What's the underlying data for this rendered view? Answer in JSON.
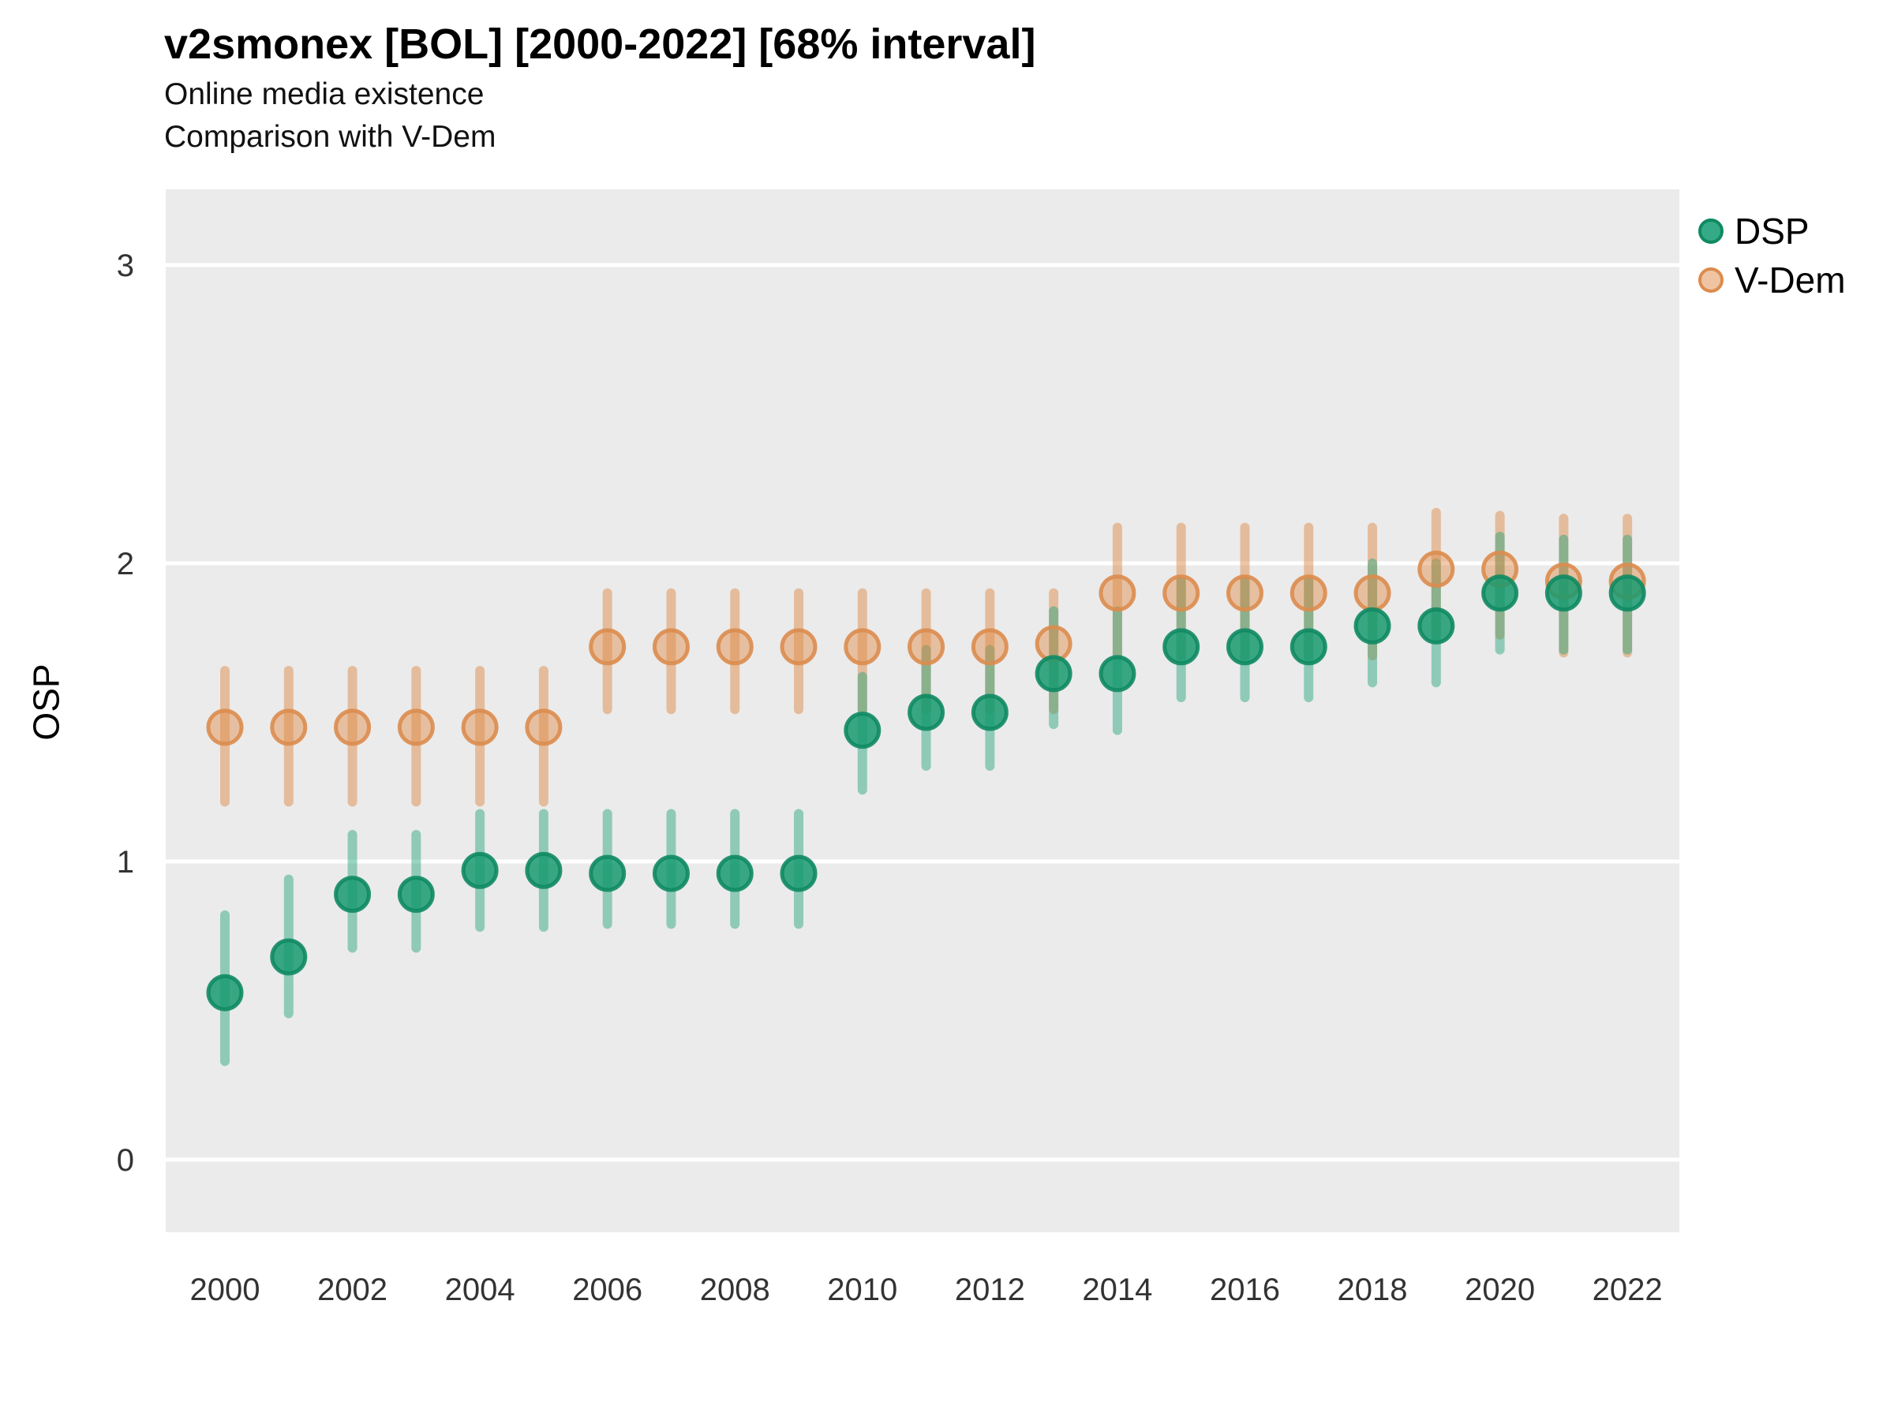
{
  "header": {
    "title": "v2smonex [BOL] [2000-2022] [68% interval]",
    "subtitle1": "Online media existence",
    "subtitle2": "Comparison with V-Dem"
  },
  "axes": {
    "y_label": "OSP",
    "y_ticks": [
      {
        "label": "0",
        "value": 0
      },
      {
        "label": "1",
        "value": 1
      },
      {
        "label": "2",
        "value": 2
      },
      {
        "label": "3",
        "value": 3
      }
    ],
    "x_ticks": [
      {
        "label": "2000",
        "year": 2000
      },
      {
        "label": "2002",
        "year": 2002
      },
      {
        "label": "2004",
        "year": 2004
      },
      {
        "label": "2006",
        "year": 2006
      },
      {
        "label": "2008",
        "year": 2008
      },
      {
        "label": "2010",
        "year": 2010
      },
      {
        "label": "2012",
        "year": 2012
      },
      {
        "label": "2014",
        "year": 2014
      },
      {
        "label": "2016",
        "year": 2016
      },
      {
        "label": "2018",
        "year": 2018
      },
      {
        "label": "2020",
        "year": 2020
      },
      {
        "label": "2022",
        "year": 2022
      }
    ]
  },
  "legend": {
    "items": [
      {
        "label": "DSP",
        "dot_fill": "#1FA179",
        "dot_fill_opacity": 0.9,
        "dot_stroke": "#0F8A63"
      },
      {
        "label": "V-Dem",
        "dot_fill": "#E08A45",
        "dot_fill_opacity": 0.5,
        "dot_stroke": "#DC8C4E"
      }
    ]
  },
  "colors": {
    "panel_background": "#EBEBEB",
    "gridline": "#FFFFFF",
    "dsp_point_fill": "#179A6F",
    "dsp_point_stroke": "#0F8A63",
    "dsp_bar": "#1FA179",
    "vdem_point_fill": "#E08A45",
    "vdem_point_stroke": "#DC8C4E",
    "vdem_bar": "#DD8D4E",
    "tick_text": "#333333"
  },
  "chart_data": {
    "type": "scatter",
    "title": "v2smonex [BOL] [2000-2022] [68% interval]",
    "subtitle": "Online media existence / Comparison with V-Dem",
    "xlabel": "",
    "ylabel": "OSP",
    "x_range_years": [
      2000,
      2022
    ],
    "ylim": [
      -0.25,
      3.25
    ],
    "y_gridlines": [
      0,
      1,
      2,
      3
    ],
    "grid": "major-horizontal-only",
    "legend_position": "right-top",
    "interval_note": "68% credible interval shown as vertical bars",
    "series": [
      {
        "name": "V-Dem",
        "points": [
          {
            "year": 2000,
            "value": 1.45,
            "lo": 1.2,
            "hi": 1.64
          },
          {
            "year": 2001,
            "value": 1.45,
            "lo": 1.2,
            "hi": 1.64
          },
          {
            "year": 2002,
            "value": 1.45,
            "lo": 1.2,
            "hi": 1.64
          },
          {
            "year": 2003,
            "value": 1.45,
            "lo": 1.2,
            "hi": 1.64
          },
          {
            "year": 2004,
            "value": 1.45,
            "lo": 1.2,
            "hi": 1.64
          },
          {
            "year": 2005,
            "value": 1.45,
            "lo": 1.2,
            "hi": 1.64
          },
          {
            "year": 2006,
            "value": 1.72,
            "lo": 1.51,
            "hi": 1.9
          },
          {
            "year": 2007,
            "value": 1.72,
            "lo": 1.51,
            "hi": 1.9
          },
          {
            "year": 2008,
            "value": 1.72,
            "lo": 1.51,
            "hi": 1.9
          },
          {
            "year": 2009,
            "value": 1.72,
            "lo": 1.51,
            "hi": 1.9
          },
          {
            "year": 2010,
            "value": 1.72,
            "lo": 1.51,
            "hi": 1.9
          },
          {
            "year": 2011,
            "value": 1.72,
            "lo": 1.51,
            "hi": 1.9
          },
          {
            "year": 2012,
            "value": 1.72,
            "lo": 1.51,
            "hi": 1.9
          },
          {
            "year": 2013,
            "value": 1.73,
            "lo": 1.51,
            "hi": 1.9
          },
          {
            "year": 2014,
            "value": 1.9,
            "lo": 1.69,
            "hi": 2.12
          },
          {
            "year": 2015,
            "value": 1.9,
            "lo": 1.69,
            "hi": 2.12
          },
          {
            "year": 2016,
            "value": 1.9,
            "lo": 1.69,
            "hi": 2.12
          },
          {
            "year": 2017,
            "value": 1.9,
            "lo": 1.69,
            "hi": 2.12
          },
          {
            "year": 2018,
            "value": 1.9,
            "lo": 1.69,
            "hi": 2.12
          },
          {
            "year": 2019,
            "value": 1.98,
            "lo": 1.76,
            "hi": 2.17
          },
          {
            "year": 2020,
            "value": 1.98,
            "lo": 1.76,
            "hi": 2.16
          },
          {
            "year": 2021,
            "value": 1.94,
            "lo": 1.7,
            "hi": 2.15
          },
          {
            "year": 2022,
            "value": 1.94,
            "lo": 1.7,
            "hi": 2.15
          }
        ]
      },
      {
        "name": "DSP",
        "points": [
          {
            "year": 2000,
            "value": 0.56,
            "lo": 0.33,
            "hi": 0.82
          },
          {
            "year": 2001,
            "value": 0.68,
            "lo": 0.49,
            "hi": 0.94
          },
          {
            "year": 2002,
            "value": 0.89,
            "lo": 0.71,
            "hi": 1.09
          },
          {
            "year": 2003,
            "value": 0.89,
            "lo": 0.71,
            "hi": 1.09
          },
          {
            "year": 2004,
            "value": 0.97,
            "lo": 0.78,
            "hi": 1.16
          },
          {
            "year": 2005,
            "value": 0.97,
            "lo": 0.78,
            "hi": 1.16
          },
          {
            "year": 2006,
            "value": 0.96,
            "lo": 0.79,
            "hi": 1.16
          },
          {
            "year": 2007,
            "value": 0.96,
            "lo": 0.79,
            "hi": 1.16
          },
          {
            "year": 2008,
            "value": 0.96,
            "lo": 0.79,
            "hi": 1.16
          },
          {
            "year": 2009,
            "value": 0.96,
            "lo": 0.79,
            "hi": 1.16
          },
          {
            "year": 2010,
            "value": 1.44,
            "lo": 1.24,
            "hi": 1.62
          },
          {
            "year": 2011,
            "value": 1.5,
            "lo": 1.32,
            "hi": 1.71
          },
          {
            "year": 2012,
            "value": 1.5,
            "lo": 1.32,
            "hi": 1.71
          },
          {
            "year": 2013,
            "value": 1.63,
            "lo": 1.46,
            "hi": 1.84
          },
          {
            "year": 2014,
            "value": 1.63,
            "lo": 1.44,
            "hi": 1.84
          },
          {
            "year": 2015,
            "value": 1.72,
            "lo": 1.55,
            "hi": 1.94
          },
          {
            "year": 2016,
            "value": 1.72,
            "lo": 1.55,
            "hi": 1.94
          },
          {
            "year": 2017,
            "value": 1.72,
            "lo": 1.55,
            "hi": 1.94
          },
          {
            "year": 2018,
            "value": 1.79,
            "lo": 1.6,
            "hi": 2.0
          },
          {
            "year": 2019,
            "value": 1.79,
            "lo": 1.6,
            "hi": 2.0
          },
          {
            "year": 2020,
            "value": 1.9,
            "lo": 1.71,
            "hi": 2.09
          },
          {
            "year": 2021,
            "value": 1.9,
            "lo": 1.71,
            "hi": 2.08
          },
          {
            "year": 2022,
            "value": 1.9,
            "lo": 1.71,
            "hi": 2.08
          }
        ]
      }
    ]
  }
}
